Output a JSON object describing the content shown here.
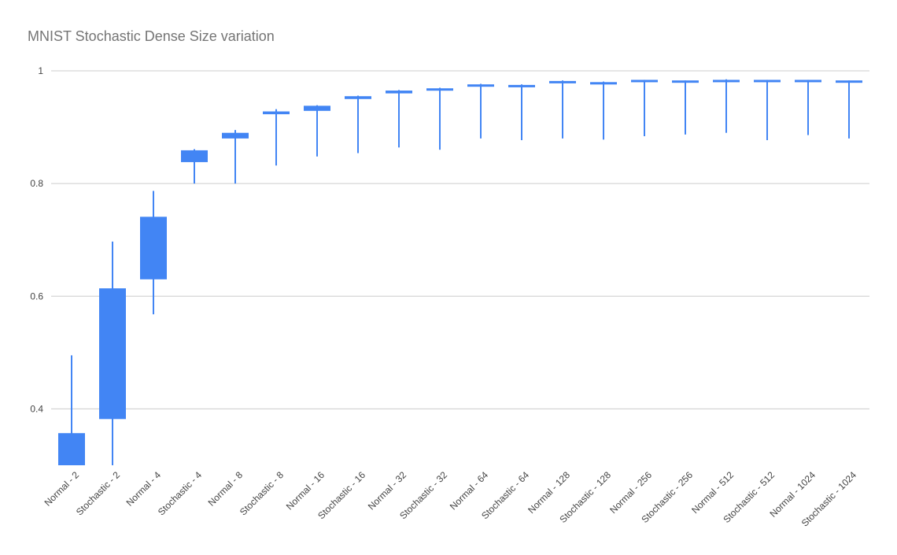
{
  "chart_data": {
    "type": "candlestick",
    "title": "MNIST Stochastic Dense Size variation",
    "xlabel": "",
    "ylabel": "",
    "ylim": [
      0.3,
      1.0
    ],
    "yticks": [
      "0.4",
      "0.6",
      "0.8",
      "1"
    ],
    "grid": true,
    "legend": "none",
    "color": "#4285F4",
    "categories": [
      "Normal - 2",
      "Stochastic - 2",
      "Normal - 4",
      "Stochastic - 4",
      "Normal - 8",
      "Stochastic - 8",
      "Normal - 16",
      "Stochastic - 16",
      "Normal - 32",
      "Stochastic - 32",
      "Normal - 64",
      "Stochastic - 64",
      "Normal - 128",
      "Stochastic - 128",
      "Normal - 256",
      "Stochastic - 256",
      "Normal - 512",
      "Stochastic - 512",
      "Normal - 1024",
      "Stochastic - 1024"
    ],
    "series": [
      {
        "low": 0.3,
        "open": 0.3,
        "close": 0.357,
        "high": 0.495
      },
      {
        "low": 0.3,
        "open": 0.382,
        "close": 0.614,
        "high": 0.697
      },
      {
        "low": 0.568,
        "open": 0.63,
        "close": 0.741,
        "high": 0.787
      },
      {
        "low": 0.8,
        "open": 0.838,
        "close": 0.859,
        "high": 0.861
      },
      {
        "low": 0.8,
        "open": 0.88,
        "close": 0.89,
        "high": 0.895
      },
      {
        "low": 0.832,
        "open": 0.923,
        "close": 0.928,
        "high": 0.932
      },
      {
        "low": 0.848,
        "open": 0.929,
        "close": 0.938,
        "high": 0.939
      },
      {
        "low": 0.854,
        "open": 0.95,
        "close": 0.955,
        "high": 0.956
      },
      {
        "low": 0.864,
        "open": 0.96,
        "close": 0.965,
        "high": 0.966
      },
      {
        "low": 0.86,
        "open": 0.965,
        "close": 0.969,
        "high": 0.97
      },
      {
        "low": 0.88,
        "open": 0.973,
        "close": 0.976,
        "high": 0.977
      },
      {
        "low": 0.877,
        "open": 0.972,
        "close": 0.975,
        "high": 0.976
      },
      {
        "low": 0.88,
        "open": 0.978,
        "close": 0.982,
        "high": 0.983
      },
      {
        "low": 0.878,
        "open": 0.976,
        "close": 0.98,
        "high": 0.981
      },
      {
        "low": 0.884,
        "open": 0.98,
        "close": 0.984,
        "high": 0.984
      },
      {
        "low": 0.887,
        "open": 0.979,
        "close": 0.983,
        "high": 0.983
      },
      {
        "low": 0.89,
        "open": 0.981,
        "close": 0.984,
        "high": 0.985
      },
      {
        "low": 0.877,
        "open": 0.98,
        "close": 0.984,
        "high": 0.984
      },
      {
        "low": 0.886,
        "open": 0.98,
        "close": 0.984,
        "high": 0.984
      },
      {
        "low": 0.88,
        "open": 0.979,
        "close": 0.983,
        "high": 0.983
      }
    ]
  }
}
